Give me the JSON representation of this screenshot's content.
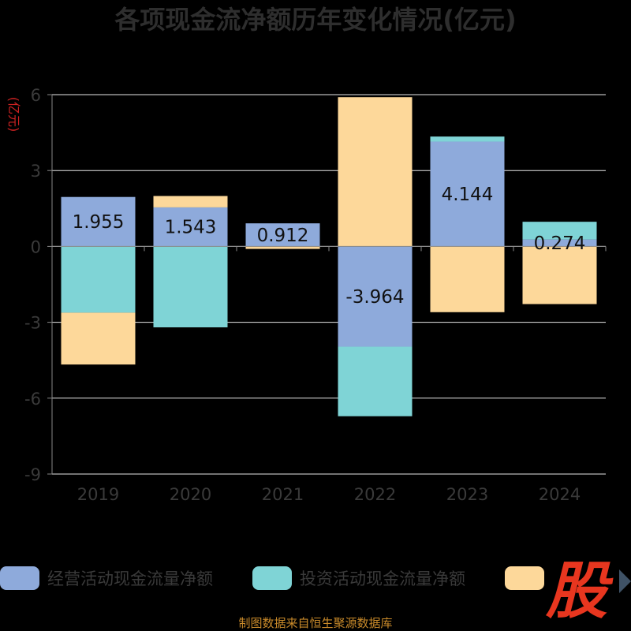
{
  "chart_data": {
    "type": "bar",
    "stacked": true,
    "title": "各项现金流净额历年变化情况(亿元)",
    "ylabel": "(亿元)",
    "categories": [
      "2019",
      "2020",
      "2021",
      "2022",
      "2023",
      "2024"
    ],
    "ylim": [
      -9,
      6
    ],
    "yticks": [
      6,
      3,
      0,
      -3,
      -6,
      -9
    ],
    "grid": true,
    "legend_position": "bottom",
    "series": [
      {
        "name": "经营活动现金流量净额",
        "color": "#8eaadb",
        "values": [
          1.955,
          1.543,
          0.912,
          -3.964,
          4.144,
          0.274
        ]
      },
      {
        "name": "投资活动现金流量净额",
        "color": "#7fd4d6",
        "values": [
          -2.62,
          -3.2,
          0,
          -2.75,
          0.2,
          0.7
        ]
      },
      {
        "name": "",
        "color": "#fdd89a",
        "values": [
          -2.05,
          0.45,
          -0.1,
          5.9,
          -2.6,
          -2.28
        ]
      }
    ],
    "data_labels": [
      "1.955",
      "1.543",
      "0.912",
      "-3.964",
      "4.144",
      "0.274"
    ]
  },
  "source": "制图数据来自恒生聚源数据库",
  "brand": "股"
}
